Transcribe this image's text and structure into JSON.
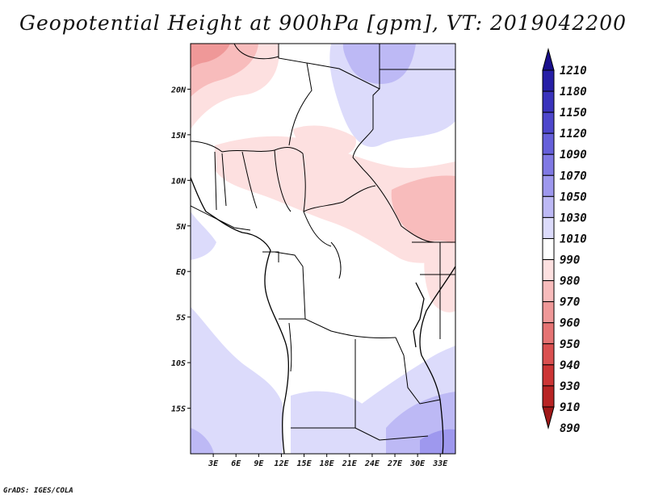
{
  "title": "Geopotential Height at 900hPa [gpm], VT: 2019042200",
  "credit": "GrADS: IGES/COLA",
  "map": {
    "lon_labels": [
      "3E",
      "6E",
      "9E",
      "12E",
      "15E",
      "18E",
      "21E",
      "24E",
      "27E",
      "30E",
      "33E"
    ],
    "lat_labels": [
      "20N",
      "15N",
      "10N",
      "5N",
      "EQ",
      "5S",
      "10S",
      "15S"
    ],
    "lon_range": [
      0,
      35
    ],
    "lat_range": [
      -20,
      25
    ]
  },
  "colorbar": {
    "levels": [
      "1210",
      "1180",
      "1150",
      "1120",
      "1090",
      "1070",
      "1050",
      "1030",
      "1010",
      "990",
      "980",
      "970",
      "960",
      "950",
      "940",
      "930",
      "910",
      "890"
    ],
    "colors": [
      "#1a0f8c",
      "#271fa6",
      "#3a33bc",
      "#4e47cc",
      "#6660da",
      "#8079e4",
      "#9e98ee",
      "#bdb9f5",
      "#dcdbfb",
      "#ffffff",
      "#fde0e0",
      "#f8bcbc",
      "#ef9898",
      "#e57373",
      "#da5050",
      "#cc3535",
      "#b82424",
      "#a01818"
    ]
  },
  "chart_data": {
    "type": "heatmap",
    "title": "Geopotential Height at 900hPa [gpm], VT: 2019042200",
    "variable": "Geopotential Height",
    "level": "900hPa",
    "units": "gpm",
    "valid_time": "2019042200",
    "x_ticks": [
      "3E",
      "6E",
      "9E",
      "12E",
      "15E",
      "18E",
      "21E",
      "24E",
      "27E",
      "30E",
      "33E"
    ],
    "y_ticks": [
      "20N",
      "15N",
      "10N",
      "5N",
      "EQ",
      "5S",
      "10S",
      "15S"
    ],
    "contour_levels": [
      1210,
      1180,
      1150,
      1120,
      1090,
      1070,
      1050,
      1030,
      1010,
      990,
      980,
      970,
      960,
      950,
      940,
      930,
      910,
      890
    ]
  }
}
